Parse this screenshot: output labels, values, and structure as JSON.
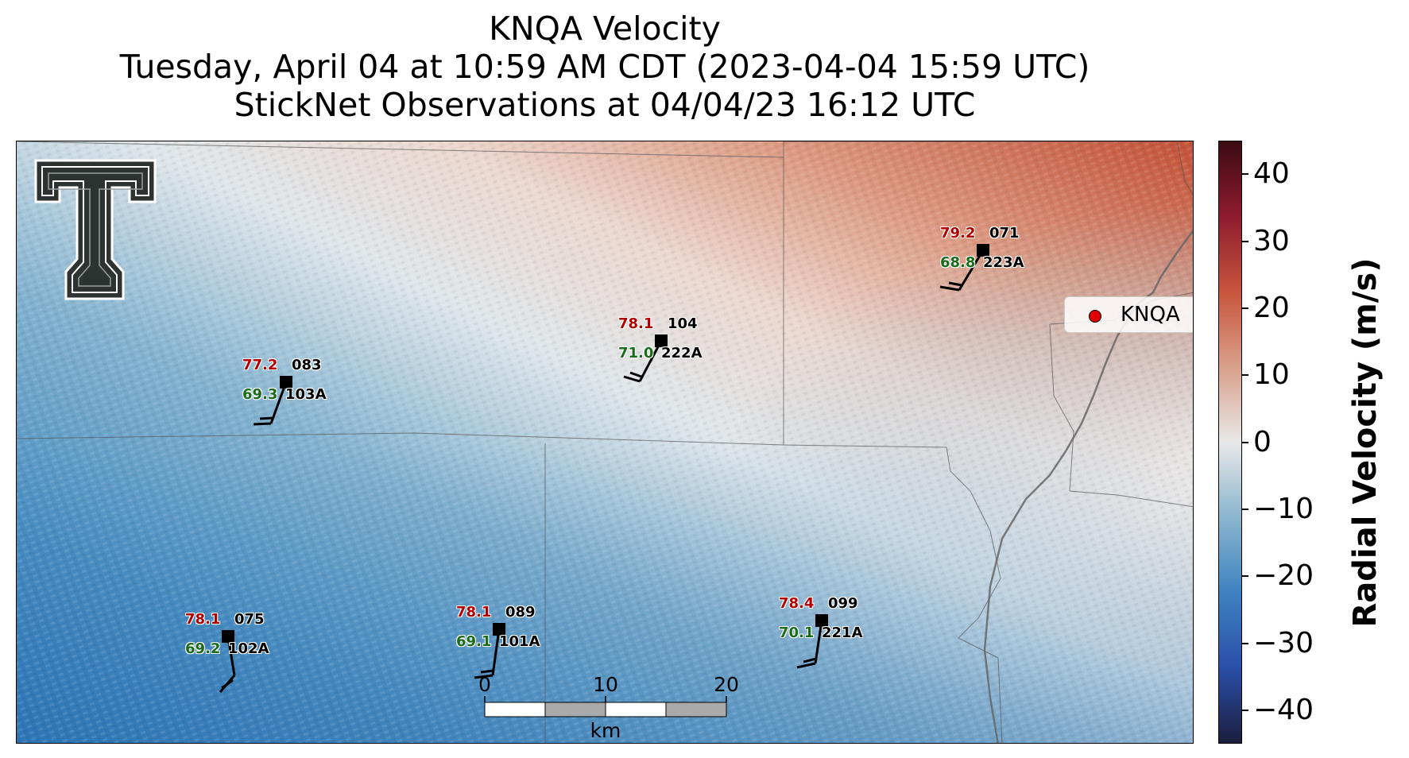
{
  "title": {
    "line1": "KNQA Velocity",
    "line2": "Tuesday, April 04 at 10:59 AM CDT (2023-04-04 15:59 UTC)",
    "line3": "StickNet Observations at 04/04/23 16:12 UTC"
  },
  "legend": {
    "label": "KNQA",
    "marker_color": "#e00000"
  },
  "colorbar": {
    "label": "Radial Velocity (m/s)",
    "range": [
      -45,
      45
    ],
    "ticks": [
      "40",
      "30",
      "20",
      "10",
      "0",
      "−10",
      "−20",
      "−30",
      "−40"
    ],
    "tick_values": [
      40,
      30,
      20,
      10,
      0,
      -10,
      -20,
      -30,
      -40
    ],
    "colors": [
      "#1b1e3d",
      "#2a4fa8",
      "#3f82c0",
      "#8bb6cf",
      "#e8e8e8",
      "#d9a08a",
      "#c8553d",
      "#8e1b2e",
      "#3d0b14"
    ]
  },
  "scalebar": {
    "ticks": [
      "0",
      "10",
      "20"
    ],
    "unit": "km"
  },
  "stations": [
    {
      "id": "083",
      "probe": "103A",
      "temp": "77.2",
      "dew": "69.3"
    },
    {
      "id": "104",
      "probe": "222A",
      "temp": "78.1",
      "dew": "71.0"
    },
    {
      "id": "071",
      "probe": "223A",
      "temp": "79.2",
      "dew": "68.8"
    },
    {
      "id": "075",
      "probe": "102A",
      "temp": "78.1",
      "dew": "69.2"
    },
    {
      "id": "089",
      "probe": "101A",
      "temp": "78.1",
      "dew": "69.1"
    },
    {
      "id": "099",
      "probe": "221A",
      "temp": "78.4",
      "dew": "70.1"
    }
  ],
  "logo": {
    "icon": "texas-tech-double-t-logo"
  }
}
